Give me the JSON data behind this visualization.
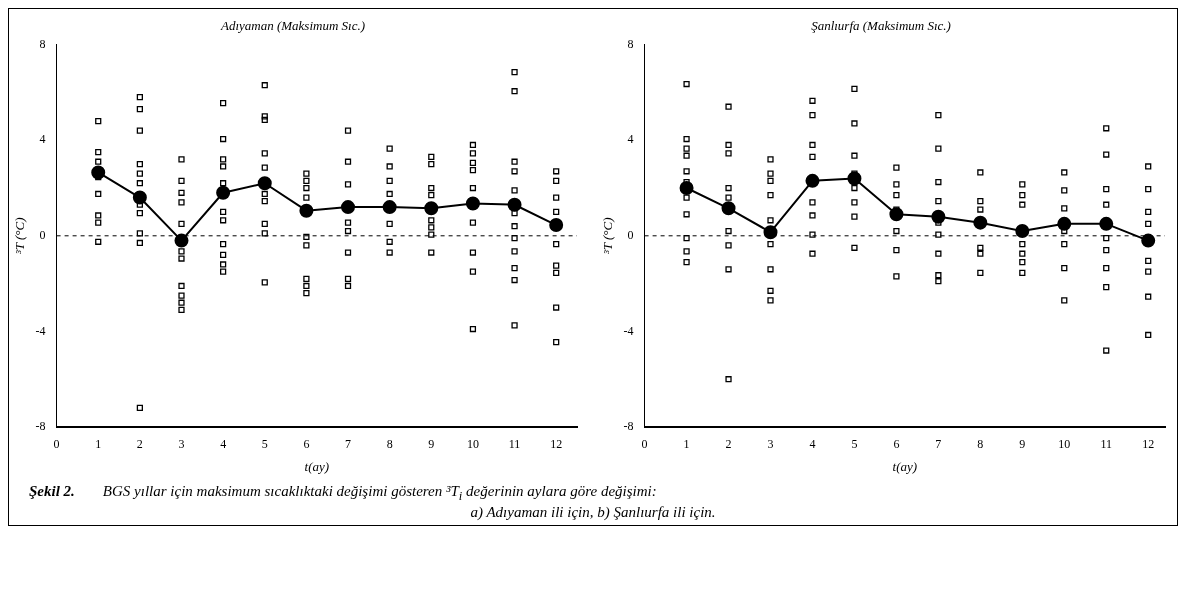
{
  "chart_data": [
    {
      "type": "scatter",
      "title": "Adıyaman (Maksimum Sıc.)",
      "xlabel": "t(ay)",
      "ylabel": "³T (°C)",
      "xlim": [
        0,
        12.5
      ],
      "xticks": [
        0,
        1,
        2,
        3,
        4,
        5,
        6,
        7,
        8,
        9,
        10,
        11,
        12
      ],
      "ylim": [
        -8,
        8
      ],
      "yticks": [
        8,
        4,
        0,
        -4,
        -8
      ],
      "grid": false,
      "legend": false,
      "ref_lines": [
        {
          "axis": "y",
          "value": 0,
          "line_style": "dashed",
          "color": "#000000"
        }
      ],
      "series": [
        {
          "type": "scatter",
          "marker": "square",
          "color": "#000000",
          "x": [
            1,
            1,
            1,
            1,
            1,
            1,
            1,
            1,
            2,
            2,
            2,
            2,
            2,
            2,
            2,
            2,
            2,
            2,
            2,
            3,
            3,
            3,
            3,
            3,
            3,
            3,
            3,
            3,
            3,
            3,
            4,
            4,
            4,
            4,
            4,
            4,
            4,
            4,
            4,
            4,
            4,
            5,
            5,
            5,
            5,
            5,
            5,
            5,
            5,
            5,
            5,
            6,
            6,
            6,
            6,
            6,
            6,
            6,
            6,
            6,
            7,
            7,
            7,
            7,
            7,
            7,
            7,
            7,
            8,
            8,
            8,
            8,
            8,
            8,
            8,
            9,
            9,
            9,
            9,
            9,
            9,
            9,
            9,
            10,
            10,
            10,
            10,
            10,
            10,
            10,
            10,
            10,
            11,
            11,
            11,
            11,
            11,
            11,
            11,
            11,
            11,
            11,
            11,
            11,
            12,
            12,
            12,
            12,
            12,
            12,
            12,
            12,
            12
          ],
          "values": [
            4.8,
            3.5,
            3.1,
            2.45,
            1.75,
            0.85,
            0.55,
            -0.25,
            5.8,
            5.3,
            4.4,
            3.0,
            2.6,
            2.2,
            1.3,
            0.95,
            0.1,
            -0.3,
            -7.2,
            3.2,
            2.3,
            1.8,
            1.4,
            0.5,
            -0.65,
            -0.95,
            -2.1,
            -2.5,
            -2.8,
            -3.1,
            5.55,
            4.05,
            3.2,
            2.9,
            2.2,
            1.0,
            0.65,
            -0.35,
            -0.8,
            -1.2,
            -1.5,
            6.3,
            5.0,
            4.85,
            3.45,
            2.85,
            1.75,
            1.45,
            0.5,
            0.1,
            -1.95,
            2.6,
            2.3,
            2.0,
            1.6,
            -0.05,
            -0.4,
            -1.8,
            -2.1,
            -2.4,
            4.4,
            3.1,
            2.15,
            0.55,
            0.2,
            -0.7,
            -1.8,
            -2.1,
            3.65,
            2.9,
            2.3,
            1.75,
            0.5,
            -0.25,
            -0.7,
            3.3,
            3.0,
            2.0,
            1.7,
            0.65,
            0.35,
            0.05,
            -0.7,
            3.8,
            3.45,
            3.05,
            2.75,
            2.0,
            0.55,
            -0.7,
            -1.5,
            -3.9,
            6.85,
            6.05,
            3.1,
            2.7,
            1.9,
            0.95,
            0.4,
            -0.1,
            -0.65,
            -1.35,
            -1.85,
            -3.75,
            2.7,
            2.3,
            1.6,
            1.0,
            -0.35,
            -1.25,
            -1.55,
            -3.0,
            -4.45
          ]
        },
        {
          "type": "line",
          "marker": "circle",
          "line_style": "solid",
          "color": "#000000",
          "x": [
            1,
            2,
            3,
            4,
            5,
            6,
            7,
            8,
            9,
            10,
            11,
            12
          ],
          "values": [
            2.65,
            1.6,
            -0.2,
            1.8,
            2.2,
            1.05,
            1.2,
            1.2,
            1.15,
            1.35,
            1.3,
            0.45
          ]
        }
      ]
    },
    {
      "type": "scatter",
      "title": "Şanlıurfa (Maksimum Sıc.)",
      "xlabel": "t(ay)",
      "ylabel": "³T (°C)",
      "xlim": [
        0,
        12.4
      ],
      "xticks": [
        0,
        1,
        2,
        3,
        4,
        5,
        6,
        7,
        8,
        9,
        10,
        11,
        12
      ],
      "ylim": [
        -8,
        8
      ],
      "yticks": [
        8,
        4,
        0,
        -4,
        -8
      ],
      "grid": false,
      "legend": false,
      "ref_lines": [
        {
          "axis": "y",
          "value": 0,
          "line_style": "dashed",
          "color": "#000000"
        }
      ],
      "series": [
        {
          "type": "scatter",
          "marker": "square",
          "color": "#000000",
          "x": [
            1,
            1,
            1,
            1,
            1,
            1,
            1,
            1,
            1,
            1,
            1,
            2,
            2,
            2,
            2,
            2,
            2,
            2,
            2,
            2,
            3,
            3,
            3,
            3,
            3,
            3,
            3,
            3,
            3,
            4,
            4,
            4,
            4,
            4,
            4,
            4,
            4,
            5,
            5,
            5,
            5,
            5,
            5,
            5,
            5,
            6,
            6,
            6,
            6,
            6,
            6,
            6,
            7,
            7,
            7,
            7,
            7,
            7,
            7,
            7,
            7,
            8,
            8,
            8,
            8,
            8,
            8,
            9,
            9,
            9,
            9,
            9,
            9,
            9,
            10,
            10,
            10,
            10,
            10,
            10,
            10,
            11,
            11,
            11,
            11,
            11,
            11,
            11,
            11,
            11,
            12,
            12,
            12,
            12,
            12,
            12,
            12,
            12
          ],
          "values": [
            6.35,
            4.05,
            3.65,
            3.35,
            2.7,
            2.25,
            1.6,
            0.9,
            -0.1,
            -0.65,
            -1.1,
            5.4,
            3.8,
            3.45,
            2.0,
            1.6,
            0.2,
            -0.4,
            -1.4,
            -6.0,
            3.2,
            2.6,
            2.3,
            1.7,
            0.65,
            -0.35,
            -1.4,
            -2.3,
            -2.7,
            5.65,
            5.05,
            3.8,
            3.3,
            1.4,
            0.85,
            0.05,
            -0.75,
            6.15,
            4.7,
            3.35,
            2.6,
            2.0,
            1.4,
            0.8,
            -0.5,
            2.85,
            2.15,
            1.7,
            1.1,
            0.2,
            -0.6,
            -1.7,
            5.05,
            3.65,
            2.25,
            1.45,
            0.55,
            0.05,
            -0.75,
            -1.65,
            -1.9,
            2.65,
            1.45,
            1.1,
            -0.5,
            -0.75,
            -1.55,
            2.15,
            1.7,
            1.3,
            -0.35,
            -0.75,
            -1.1,
            -1.55,
            2.65,
            1.9,
            1.15,
            0.2,
            -0.35,
            -1.35,
            -2.7,
            4.5,
            3.4,
            1.95,
            1.3,
            -0.1,
            -0.6,
            -1.35,
            -2.15,
            -4.8,
            2.9,
            1.95,
            1.0,
            0.5,
            -1.05,
            -1.5,
            -2.55,
            -4.15
          ]
        },
        {
          "type": "line",
          "marker": "circle",
          "line_style": "solid",
          "color": "#000000",
          "x": [
            1,
            2,
            3,
            4,
            5,
            6,
            7,
            8,
            9,
            10,
            11,
            12
          ],
          "values": [
            2.0,
            1.15,
            0.15,
            2.3,
            2.4,
            0.9,
            0.8,
            0.55,
            0.2,
            0.5,
            0.5,
            -0.2
          ]
        }
      ]
    },
    {
      "type": "other",
      "annotations": [
        "Şekil 2.",
        "BGS yıllar için maksimum sıcaklıktaki değişimi gösteren ³T$_{i}$ değerinin aylara göre değişimi:",
        "a) Adıyaman ili için, b) Şanlıurfa ili için."
      ]
    }
  ]
}
